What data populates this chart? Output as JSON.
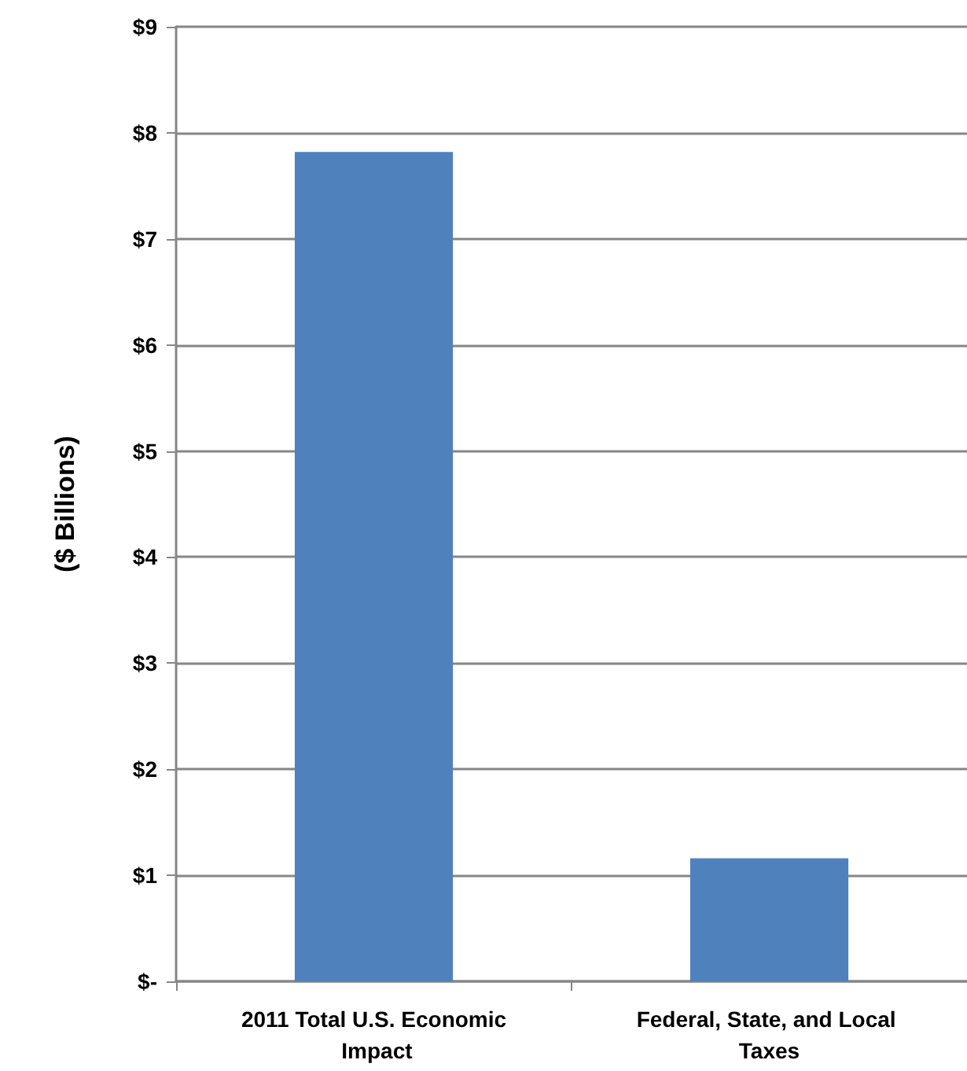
{
  "chart_data": {
    "type": "bar",
    "ylabel": "($ Billions)",
    "categories": [
      "2011 Total U.S. Economic Impact",
      "Federal, State, and Local Taxes"
    ],
    "values": [
      7.82,
      1.16
    ],
    "color": "#4f81bd",
    "ylim": [
      0,
      9
    ],
    "yticks": [
      {
        "value": 0,
        "label": "$-"
      },
      {
        "value": 1,
        "label": "$1"
      },
      {
        "value": 2,
        "label": "$2"
      },
      {
        "value": 3,
        "label": "$3"
      },
      {
        "value": 4,
        "label": "$4"
      },
      {
        "value": 5,
        "label": "$5"
      },
      {
        "value": 6,
        "label": "$6"
      },
      {
        "value": 7,
        "label": "$7"
      },
      {
        "value": 8,
        "label": "$8"
      },
      {
        "value": 9,
        "label": "$9"
      }
    ],
    "grid": "y"
  }
}
